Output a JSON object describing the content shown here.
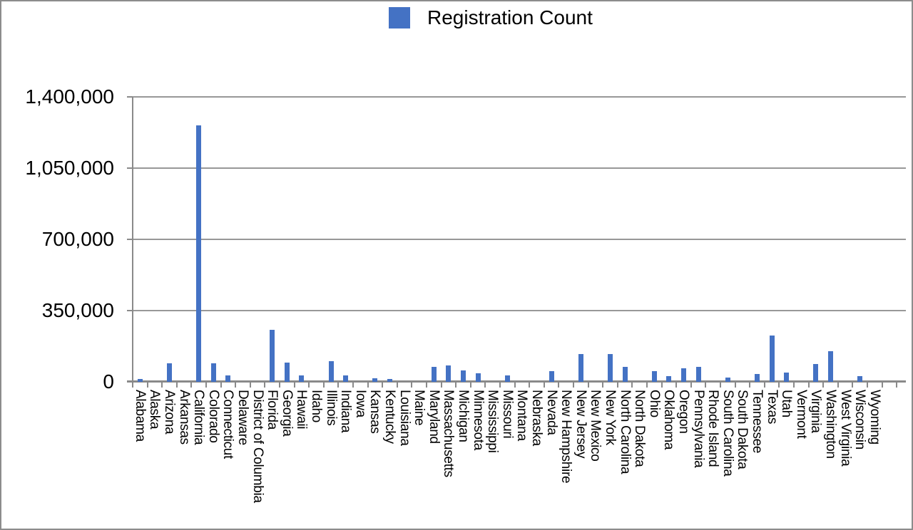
{
  "chart_data": {
    "type": "bar",
    "title": "",
    "legend_label": "Registration Count",
    "legend_position": "top-center",
    "bar_color": "#4472C4",
    "axis_color": "#8a8a8a",
    "gridline_color": "#989898",
    "grid": true,
    "x_label_rotation_deg": 90,
    "ylim": [
      0,
      1400000
    ],
    "yticks": [
      0,
      350000,
      700000,
      1050000,
      1400000
    ],
    "ytick_labels": [
      "0",
      "350,000",
      "700,000",
      "1,050,000",
      "1,400,000"
    ],
    "xlabel": "",
    "ylabel": "",
    "categories": [
      "Alabama",
      "Alaska",
      "Arizona",
      "Arkansas",
      "California",
      "Colorado",
      "Connecticut",
      "Delaware",
      "District of Columbia",
      "Florida",
      "Georgia",
      "Hawaii",
      "Idaho",
      "Illinois",
      "Indiana",
      "Iowa",
      "Kansas",
      "Kentucky",
      "Louisiana",
      "Maine",
      "Maryland",
      "Massachusetts",
      "Michigan",
      "Minnesota",
      "Mississippi",
      "Missouri",
      "Montana",
      "Nebraska",
      "Nevada",
      "New Hampshire",
      "New Jersey",
      "New Mexico",
      "New York",
      "North Carolina",
      "North Dakota",
      "Ohio",
      "Oklahoma",
      "Oregon",
      "Pennsylvania",
      "Rhode Island",
      "South Carolina",
      "South Dakota",
      "Tennessee",
      "Texas",
      "Utah",
      "Vermont",
      "Virginia",
      "Washington",
      "West Virginia",
      "Wisconsin",
      "Wyoming"
    ],
    "series": [
      {
        "name": "Registration Count",
        "values": [
          14000,
          0,
          91000,
          0,
          1259000,
          91000,
          33000,
          0,
          0,
          255000,
          94000,
          31000,
          0,
          103000,
          30000,
          0,
          16000,
          14000,
          0,
          0,
          73000,
          79000,
          56000,
          42000,
          0,
          31000,
          0,
          0,
          51000,
          0,
          138000,
          0,
          136000,
          72000,
          0,
          52000,
          27000,
          68000,
          72000,
          0,
          21000,
          0,
          37000,
          229000,
          45000,
          0,
          87000,
          150000,
          0,
          27000,
          0
        ]
      }
    ]
  }
}
